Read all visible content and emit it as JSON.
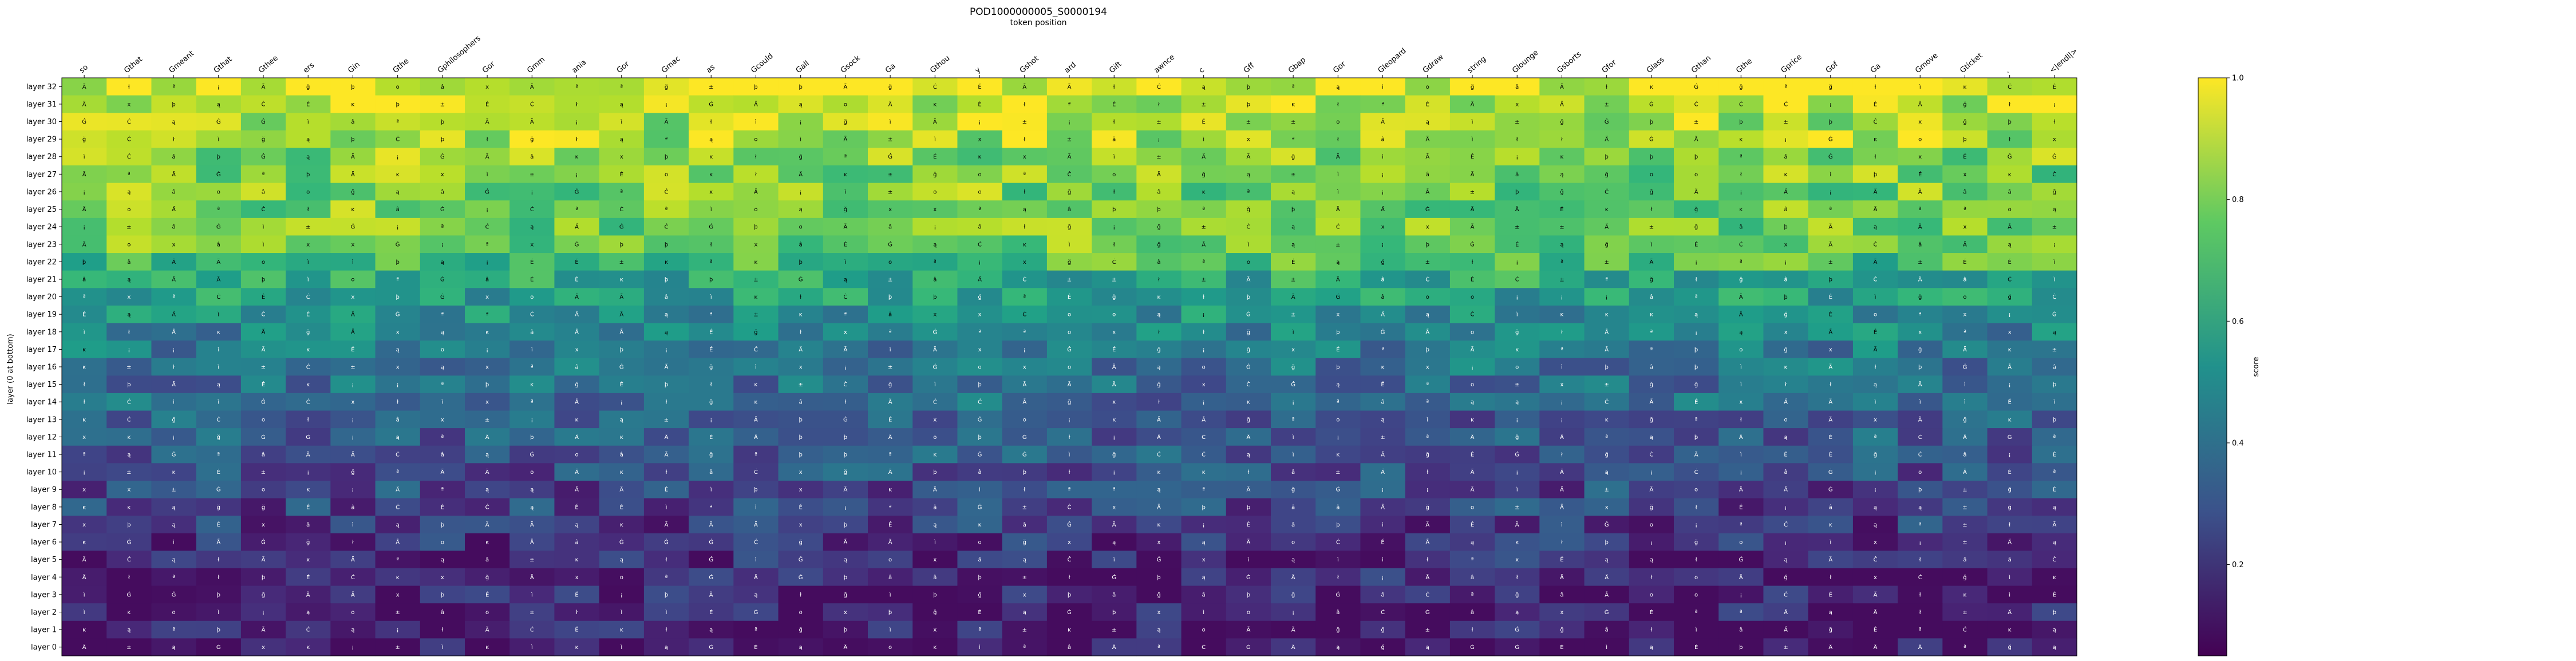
{
  "chart_data": {
    "type": "heatmap",
    "title": "POD1000000005_S0000194",
    "xlabel": "token position",
    "ylabel": "layer (0 at bottom)",
    "colorbar_label": "score",
    "colormap": "viridis",
    "colorbar_ticks": [
      "0.2",
      "0.4",
      "0.6",
      "0.8",
      "1.0"
    ],
    "value_range": [
      0.05,
      1.0
    ],
    "x_labels": [
      "so",
      "Gthat",
      "Gmeant",
      "Gthat",
      "Gthee",
      "ers",
      "Gin",
      "Gthe",
      "Gphilosophers",
      "Gor",
      "Gmm",
      "ania",
      "Gor",
      "Gmac",
      "as",
      "Gcould",
      "Gall",
      "Gsock",
      "Ga",
      "Gthou",
      "y",
      "Gshot",
      "ard",
      "Gift",
      "awnce",
      "c",
      "Gff",
      "Gbap",
      "Gor",
      "Gleopard",
      "Gdraw",
      "string",
      "Glounge",
      "Gsborts",
      "Gfor",
      "Glass",
      "Gthan",
      "Gthe",
      "Gprice",
      "Gof",
      "Ga",
      "Gmove",
      "Gticket",
      ".",
      "<|endl|>"
    ],
    "y_labels": [
      "layer 32",
      "layer 31",
      "layer 30",
      "layer 29",
      "layer 28",
      "layer 27",
      "layer 26",
      "layer 25",
      "layer 24",
      "layer 23",
      "layer 22",
      "layer 21",
      "layer 20",
      "layer 19",
      "layer 18",
      "layer 17",
      "layer 16",
      "layer 15",
      "layer 14",
      "layer 13",
      "layer 12",
      "layer 11",
      "layer 10",
      "layer 9",
      "layer 8",
      "layer 7",
      "layer 6",
      "layer 5",
      "layer 4",
      "layer 3",
      "layer 2",
      "layer 1",
      "layer 0"
    ],
    "layer_means": [
      0.97,
      0.92,
      0.88,
      0.86,
      0.82,
      0.8,
      0.8,
      0.8,
      0.79,
      0.78,
      0.7,
      0.6,
      0.55,
      0.5,
      0.45,
      0.42,
      0.38,
      0.36,
      0.35,
      0.3,
      0.29,
      0.27,
      0.25,
      0.22,
      0.2,
      0.18,
      0.15,
      0.12,
      0.1,
      0.09,
      0.08,
      0.07,
      0.05
    ],
    "cell_glyphs": [
      "o",
      "Ä",
      "ì",
      "Ġ",
      "ĸ",
      "Ã",
      "ą",
      "ł",
      "¡",
      "â",
      "ª",
      "É",
      "x",
      "±",
      "þ",
      "Ċ",
      "ğ"
    ],
    "grid": false
  }
}
